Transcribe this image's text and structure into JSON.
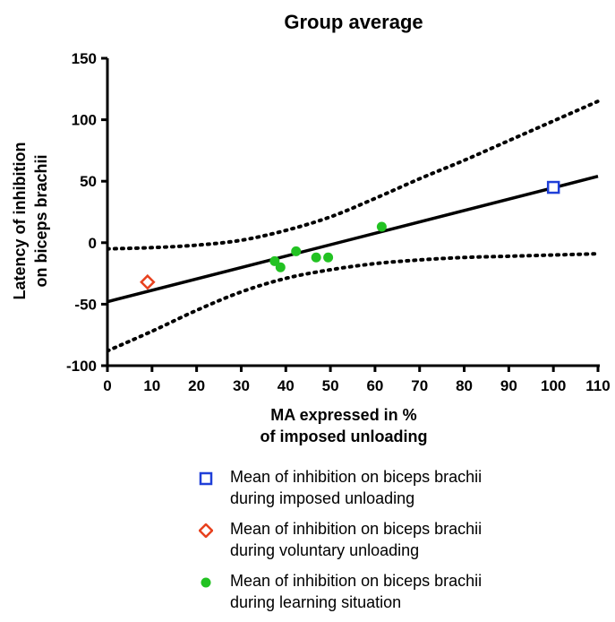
{
  "chart_data": {
    "type": "scatter",
    "title": "Group average",
    "xlabel": "MA expressed in %\nof imposed unloading",
    "ylabel": "Latency of inhibition\non biceps brachii",
    "xlim": [
      0,
      110
    ],
    "ylim": [
      -100,
      150
    ],
    "xticks": [
      0,
      10,
      20,
      30,
      40,
      50,
      60,
      70,
      80,
      90,
      100,
      110
    ],
    "yticks": [
      -100,
      -50,
      0,
      50,
      100,
      150
    ],
    "grid": false,
    "legend_position": "bottom",
    "series": [
      {
        "name": "Mean of inhibition on biceps brachii\nduring imposed unloading",
        "marker": "open-square",
        "color": "#1f3fd8",
        "points": [
          [
            100,
            45
          ]
        ]
      },
      {
        "name": "Mean of inhibition on biceps brachii\nduring voluntary unloading",
        "marker": "open-diamond",
        "color": "#e8411e",
        "points": [
          [
            9,
            -32
          ]
        ]
      },
      {
        "name": "Mean of inhibition on biceps brachii\nduring learning situation",
        "marker": "filled-circle",
        "color": "#22c222",
        "points": [
          [
            37.5,
            -15
          ],
          [
            38.8,
            -20
          ],
          [
            42.3,
            -7
          ],
          [
            46.8,
            -12
          ],
          [
            49.5,
            -12
          ],
          [
            61.5,
            13
          ]
        ]
      }
    ],
    "regression_line": {
      "style": "solid",
      "color": "#000000",
      "points": [
        [
          0,
          -48
        ],
        [
          110,
          54
        ]
      ]
    },
    "confidence_band": {
      "style": "dotted",
      "color": "#000000",
      "upper": [
        [
          0,
          -5
        ],
        [
          10,
          -4
        ],
        [
          20,
          -2
        ],
        [
          30,
          2
        ],
        [
          40,
          10
        ],
        [
          50,
          21
        ],
        [
          60,
          36
        ],
        [
          70,
          52
        ],
        [
          80,
          67
        ],
        [
          90,
          83
        ],
        [
          100,
          99
        ],
        [
          110,
          115
        ]
      ],
      "lower": [
        [
          0,
          -88
        ],
        [
          10,
          -72
        ],
        [
          20,
          -55
        ],
        [
          30,
          -40
        ],
        [
          40,
          -29
        ],
        [
          50,
          -22
        ],
        [
          60,
          -17
        ],
        [
          70,
          -14
        ],
        [
          80,
          -12
        ],
        [
          90,
          -11
        ],
        [
          100,
          -10
        ],
        [
          110,
          -9
        ]
      ]
    }
  }
}
